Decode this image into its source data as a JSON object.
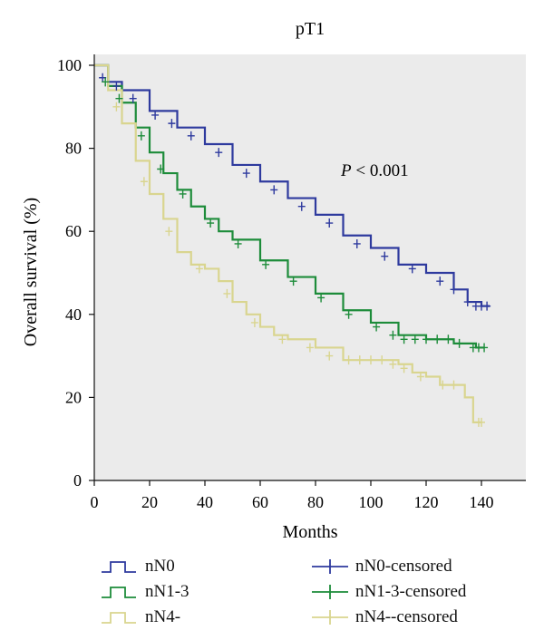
{
  "chart_data": {
    "type": "line",
    "title": "pT1",
    "xlabel": "Months",
    "ylabel": "Overall survival (%)",
    "xlim": [
      0,
      145
    ],
    "ylim": [
      0,
      100
    ],
    "x_ticks": [
      "0",
      "20",
      "40",
      "60",
      "80",
      "100",
      "120",
      "140"
    ],
    "y_ticks": [
      "0",
      "20",
      "40",
      "60",
      "80",
      "100"
    ],
    "grid": false,
    "legend_position": "bottom",
    "annotation": {
      "italic": "P",
      "text": " < 0.001"
    },
    "series": [
      {
        "name": "nN0",
        "color": "#2e3a9e",
        "x": [
          0,
          5,
          10,
          20,
          30,
          40,
          50,
          60,
          70,
          80,
          90,
          100,
          110,
          120,
          130,
          135,
          140,
          143
        ],
        "y": [
          100,
          96,
          94,
          89,
          85,
          81,
          76,
          72,
          68,
          64,
          59,
          56,
          52,
          50,
          46,
          43,
          42,
          42
        ]
      },
      {
        "name": "nN1-3",
        "color": "#1d8c3a",
        "x": [
          0,
          5,
          10,
          15,
          20,
          25,
          30,
          35,
          40,
          45,
          50,
          60,
          70,
          80,
          90,
          100,
          110,
          120,
          130,
          135,
          138,
          141
        ],
        "y": [
          100,
          95,
          91,
          85,
          79,
          74,
          70,
          66,
          63,
          60,
          58,
          53,
          49,
          45,
          41,
          38,
          35,
          34,
          33,
          33,
          32,
          32
        ]
      },
      {
        "name": "nN4-",
        "color": "#d9d58f",
        "x": [
          0,
          5,
          10,
          15,
          20,
          25,
          30,
          35,
          40,
          45,
          50,
          55,
          60,
          65,
          70,
          80,
          90,
          100,
          110,
          115,
          120,
          125,
          130,
          134,
          137,
          140
        ],
        "y": [
          100,
          94,
          86,
          77,
          69,
          63,
          55,
          52,
          51,
          48,
          43,
          40,
          37,
          35,
          34,
          32,
          29,
          29,
          28,
          26,
          25,
          23,
          23,
          20,
          14,
          14
        ]
      }
    ],
    "censored": [
      {
        "name": "nN0-censored",
        "color": "#2e3a9e",
        "x": [
          3,
          8,
          14,
          22,
          28,
          35,
          45,
          55,
          65,
          75,
          85,
          95,
          105,
          115,
          125,
          130,
          135,
          138,
          140,
          142
        ],
        "y": [
          97,
          95,
          92,
          88,
          86,
          83,
          79,
          74,
          70,
          66,
          62,
          57,
          54,
          51,
          48,
          46,
          43,
          42,
          42,
          42
        ]
      },
      {
        "name": "nN1-3-censored",
        "color": "#1d8c3a",
        "x": [
          4,
          9,
          17,
          24,
          32,
          42,
          52,
          62,
          72,
          82,
          92,
          102,
          108,
          112,
          116,
          120,
          124,
          128,
          132,
          137,
          139,
          141
        ],
        "y": [
          96,
          92,
          83,
          75,
          69,
          62,
          57,
          52,
          48,
          44,
          40,
          37,
          35,
          34,
          34,
          34,
          34,
          34,
          33,
          32,
          32,
          32
        ]
      },
      {
        "name": "nN4--censored",
        "color": "#d9d58f",
        "x": [
          8,
          18,
          27,
          38,
          48,
          58,
          68,
          78,
          85,
          92,
          96,
          100,
          104,
          108,
          112,
          118,
          126,
          130,
          139,
          140
        ],
        "y": [
          90,
          72,
          60,
          51,
          45,
          38,
          34,
          32,
          30,
          29,
          29,
          29,
          29,
          28,
          27,
          25,
          23,
          23,
          14,
          14
        ]
      }
    ]
  }
}
